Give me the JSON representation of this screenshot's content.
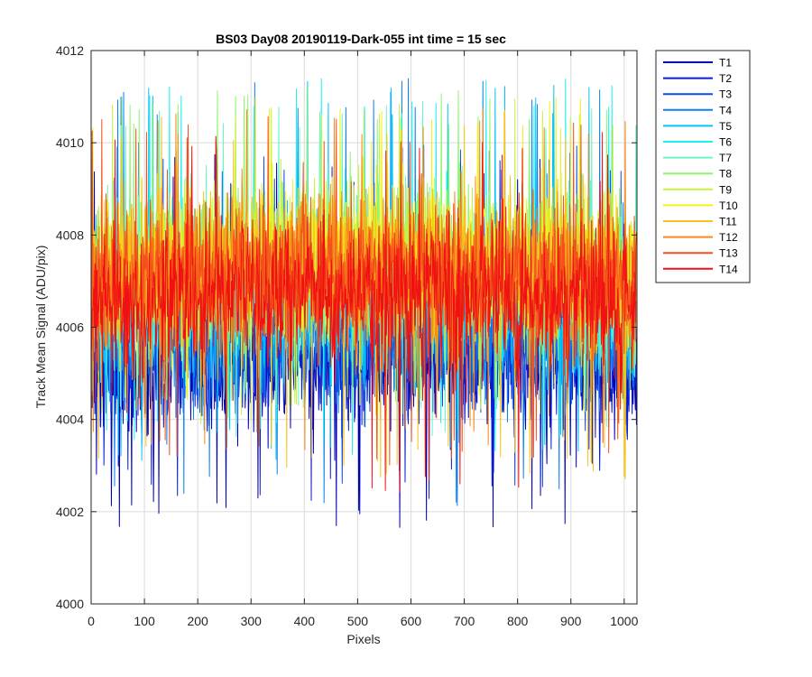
{
  "chart_data": {
    "type": "line",
    "title": "BS03 Day08 20190119-Dark-055 int time = 15 sec",
    "xlabel": "Pixels",
    "ylabel": "Track Mean Signal (ADU/pix)",
    "xlim": [
      0,
      1024
    ],
    "ylim": [
      4000,
      4012
    ],
    "xticks": [
      0,
      100,
      200,
      300,
      400,
      500,
      600,
      700,
      800,
      900,
      1000
    ],
    "yticks": [
      4000,
      4002,
      4004,
      4006,
      4008,
      4010,
      4012
    ],
    "grid": true,
    "legend_position": "outside-top-right",
    "n_points": 1024,
    "series": [
      {
        "name": "T1",
        "color": "#0000b3",
        "mean": 4005.1,
        "spread": 0.75,
        "spike_min": 4001.6,
        "spike_max": 4009.9
      },
      {
        "name": "T2",
        "color": "#0a1fd0",
        "mean": 4005.3,
        "spread": 0.75,
        "spike_min": 4002.2,
        "spike_max": 4009.8
      },
      {
        "name": "T3",
        "color": "#0b4ee0",
        "mean": 4005.6,
        "spread": 0.75,
        "spike_min": 4002.5,
        "spike_max": 4010.0
      },
      {
        "name": "T4",
        "color": "#0b82f0",
        "mean": 4005.9,
        "spread": 0.8,
        "spike_min": 4002.1,
        "spike_max": 4011.4
      },
      {
        "name": "T5",
        "color": "#09c2f7",
        "mean": 4006.3,
        "spread": 0.8,
        "spike_min": 4003.0,
        "spike_max": 4011.4
      },
      {
        "name": "T6",
        "color": "#1ef0f0",
        "mean": 4006.6,
        "spread": 0.8,
        "spike_min": 4003.2,
        "spike_max": 4011.4
      },
      {
        "name": "T7",
        "color": "#6af5c9",
        "mean": 4006.9,
        "spread": 0.8,
        "spike_min": 4003.6,
        "spike_max": 4011.0
      },
      {
        "name": "T8",
        "color": "#8ef66e",
        "mean": 4007.1,
        "spread": 0.8,
        "spike_min": 4003.8,
        "spike_max": 4011.2
      },
      {
        "name": "T9",
        "color": "#c8f53a",
        "mean": 4007.2,
        "spread": 0.8,
        "spike_min": 4003.9,
        "spike_max": 4011.0
      },
      {
        "name": "T10",
        "color": "#f5f01e",
        "mean": 4007.1,
        "spread": 0.8,
        "spike_min": 4003.8,
        "spike_max": 4011.0
      },
      {
        "name": "T11",
        "color": "#f7c31b",
        "mean": 4007.0,
        "spread": 0.8,
        "spike_min": 4002.7,
        "spike_max": 4010.8
      },
      {
        "name": "T12",
        "color": "#f78a1b",
        "mean": 4006.9,
        "spread": 0.8,
        "spike_min": 4003.3,
        "spike_max": 4010.8
      },
      {
        "name": "T13",
        "color": "#f5501b",
        "mean": 4006.8,
        "spread": 0.8,
        "spike_min": 4002.9,
        "spike_max": 4010.8
      },
      {
        "name": "T14",
        "color": "#f01212",
        "mean": 4006.4,
        "spread": 0.8,
        "spike_min": 4002.4,
        "spike_max": 4010.3
      }
    ]
  }
}
